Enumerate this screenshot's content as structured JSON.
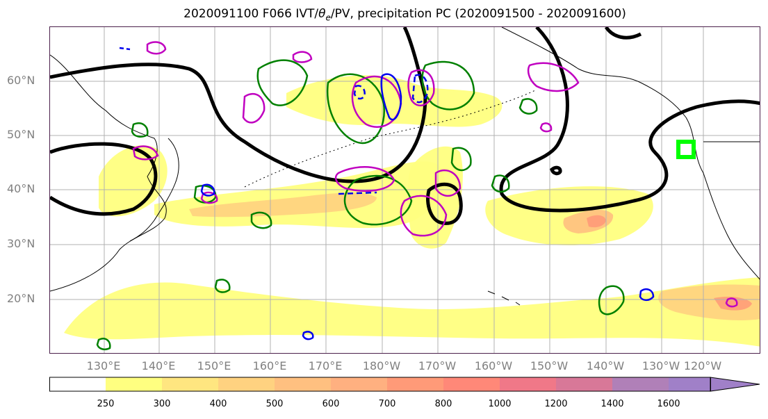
{
  "title": {
    "prefix": "2020091100 F066 IVT/",
    "theta": "θ",
    "theta_sub": "e",
    "suffix": "/PV, precipitation PC (2020091500 - 2020091600)"
  },
  "map": {
    "latitude_labels": [
      "60°N",
      "50°N",
      "40°N",
      "30°N",
      "20°N"
    ],
    "longitude_labels": [
      "130°E",
      "140°E",
      "150°E",
      "160°E",
      "170°E",
      "180°W",
      "170°W",
      "160°W",
      "150°W",
      "140°W",
      "130°W",
      "120°W"
    ],
    "colors": {
      "frame": "#4a1f4a",
      "theta_e_contour": "#000000",
      "pv_contour_solid": "#008000",
      "pv_contour_magenta": "#c000c0",
      "pv_contour_blue": "#0000ee",
      "highlight_box": "#00ff00",
      "coastline": "#000000"
    }
  },
  "colorbar": {
    "levels": [
      250,
      300,
      400,
      500,
      600,
      700,
      800,
      1000,
      1200,
      1400,
      1600
    ],
    "colors": [
      "#ffffff",
      "#ffff80",
      "#ffe680",
      "#ffd280",
      "#ffc080",
      "#ffb080",
      "#ff9a78",
      "#ff8878",
      "#f07888",
      "#d87898",
      "#b080b8",
      "#a080c8"
    ]
  }
}
